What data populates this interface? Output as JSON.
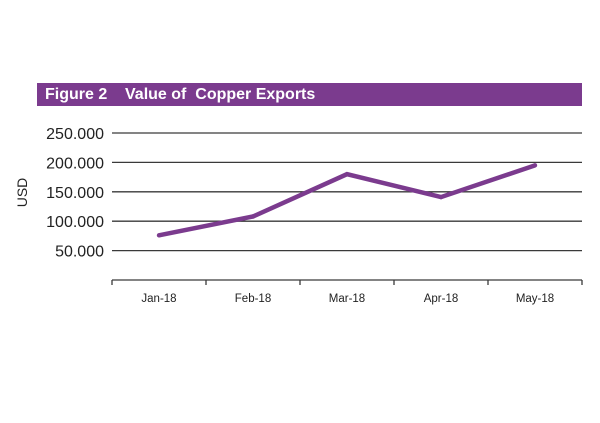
{
  "figure": {
    "title": "Figure 2    Value of  Copper Exports"
  },
  "chart_data": {
    "type": "line",
    "title": "Figure 2    Value of  Copper Exports",
    "xlabel": "",
    "ylabel": "USD",
    "categories": [
      "Jan-18",
      "Feb-18",
      "Mar-18",
      "Apr-18",
      "May-18"
    ],
    "series": [
      {
        "values": [
          76000,
          108000,
          180000,
          141000,
          195000
        ]
      }
    ],
    "y_ticks": [
      250000,
      200000,
      150000,
      100000,
      50000
    ],
    "y_tick_labels": [
      "250.000",
      "200.000",
      "150.000",
      "100.000",
      "50.000"
    ],
    "ylim": [
      0,
      250000
    ],
    "grid": true,
    "colors": {
      "accent": "#7b3b8e",
      "line": "#7b3b8e",
      "grid": "#3a3a3a"
    }
  }
}
